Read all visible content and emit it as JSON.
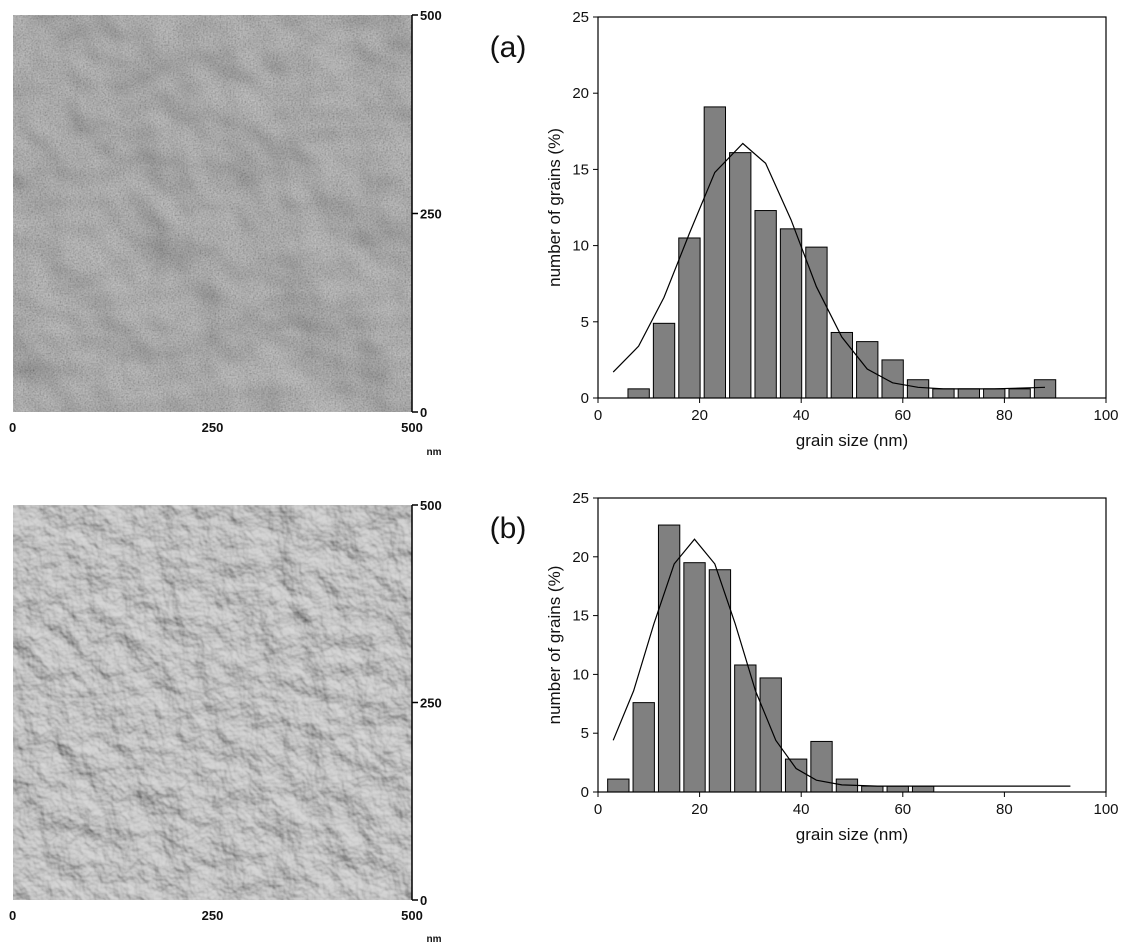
{
  "chart_data": [
    {
      "type": "image",
      "xlim": [
        0,
        500
      ],
      "ylim": [
        0,
        500
      ],
      "xticks": [
        0,
        250,
        500
      ],
      "yticks": [
        0,
        250,
        500
      ],
      "x_label": "nm"
    },
    {
      "type": "histogram",
      "panel_label": "(a)",
      "x_label": "grain size (nm)",
      "y_label": "number of grains (%)",
      "color": "#808080",
      "bins": [
        5.5,
        10.5,
        15.5,
        20.5,
        25.5,
        30.5,
        35.5,
        40.5,
        45.5,
        50.5,
        55.5,
        60.5,
        65.5,
        70.5,
        75.5,
        80.5,
        85.5,
        90.5
      ],
      "values": [
        0.6,
        4.9,
        10.5,
        19.1,
        16.1,
        12.3,
        11.1,
        9.9,
        4.3,
        3.7,
        2.5,
        1.2,
        0.6,
        0.6,
        0.6,
        0.6,
        1.2
      ],
      "fit": {
        "x": [
          3,
          8,
          13,
          18,
          23,
          28.5,
          33,
          38,
          43,
          48,
          53,
          58,
          63,
          68,
          78,
          88
        ],
        "values": [
          1.7,
          3.4,
          6.6,
          10.8,
          14.8,
          16.7,
          15.4,
          11.7,
          7.3,
          4.0,
          1.9,
          1.0,
          0.7,
          0.6,
          0.6,
          0.7
        ]
      },
      "xlim": [
        0,
        100
      ],
      "ylim": [
        0,
        25
      ],
      "xticks": [
        0,
        20,
        40,
        60,
        80,
        100
      ],
      "yticks": [
        0,
        5,
        10,
        15,
        20,
        25
      ]
    },
    {
      "type": "image",
      "xlim": [
        0,
        500
      ],
      "ylim": [
        0,
        500
      ],
      "xticks": [
        0,
        250,
        500
      ],
      "yticks": [
        0,
        250,
        500
      ],
      "x_label": "nm"
    },
    {
      "type": "histogram",
      "panel_label": "(b)",
      "x_label": "grain size (nm)",
      "y_label": "number of grains (%)",
      "color": "#808080",
      "bins": [
        1.5,
        6.5,
        11.5,
        16.5,
        21.5,
        26.5,
        31.5,
        36.5,
        41.5,
        46.5,
        51.5,
        56.5,
        61.5,
        66.5
      ],
      "values": [
        1.1,
        7.6,
        22.7,
        19.5,
        18.9,
        10.8,
        9.7,
        2.8,
        4.3,
        1.1,
        0.5,
        0.5,
        0.5
      ],
      "fit": {
        "x": [
          3,
          7,
          11,
          15,
          19,
          23,
          27,
          31,
          35,
          39,
          43,
          48,
          55,
          70,
          93
        ],
        "values": [
          4.4,
          8.6,
          14.3,
          19.4,
          21.5,
          19.4,
          14.3,
          8.6,
          4.4,
          2.0,
          1.0,
          0.6,
          0.5,
          0.5,
          0.5
        ]
      },
      "xlim": [
        0,
        100
      ],
      "ylim": [
        0,
        25
      ],
      "xticks": [
        0,
        20,
        40,
        60,
        80,
        100
      ],
      "yticks": [
        0,
        5,
        10,
        15,
        20,
        25
      ]
    }
  ]
}
